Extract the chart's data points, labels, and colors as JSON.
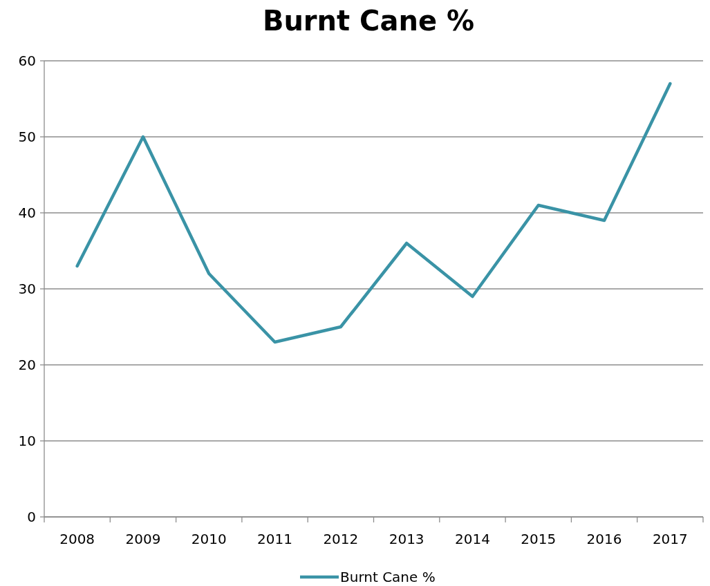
{
  "chart_data": {
    "type": "line",
    "title": "Burnt Cane %",
    "categories": [
      "2008",
      "2009",
      "2010",
      "2011",
      "2012",
      "2013",
      "2014",
      "2015",
      "2016",
      "2017"
    ],
    "series": [
      {
        "name": "Burnt Cane %",
        "color": "#3a93a6",
        "values": [
          33,
          50,
          32,
          23,
          25,
          36,
          29,
          41,
          39,
          57
        ]
      }
    ],
    "ylim": [
      0,
      60
    ],
    "yticks": [
      0,
      10,
      20,
      30,
      40,
      50,
      60
    ],
    "grid": "y",
    "legend": "bottom",
    "marker": "none",
    "line_style": "solid"
  }
}
